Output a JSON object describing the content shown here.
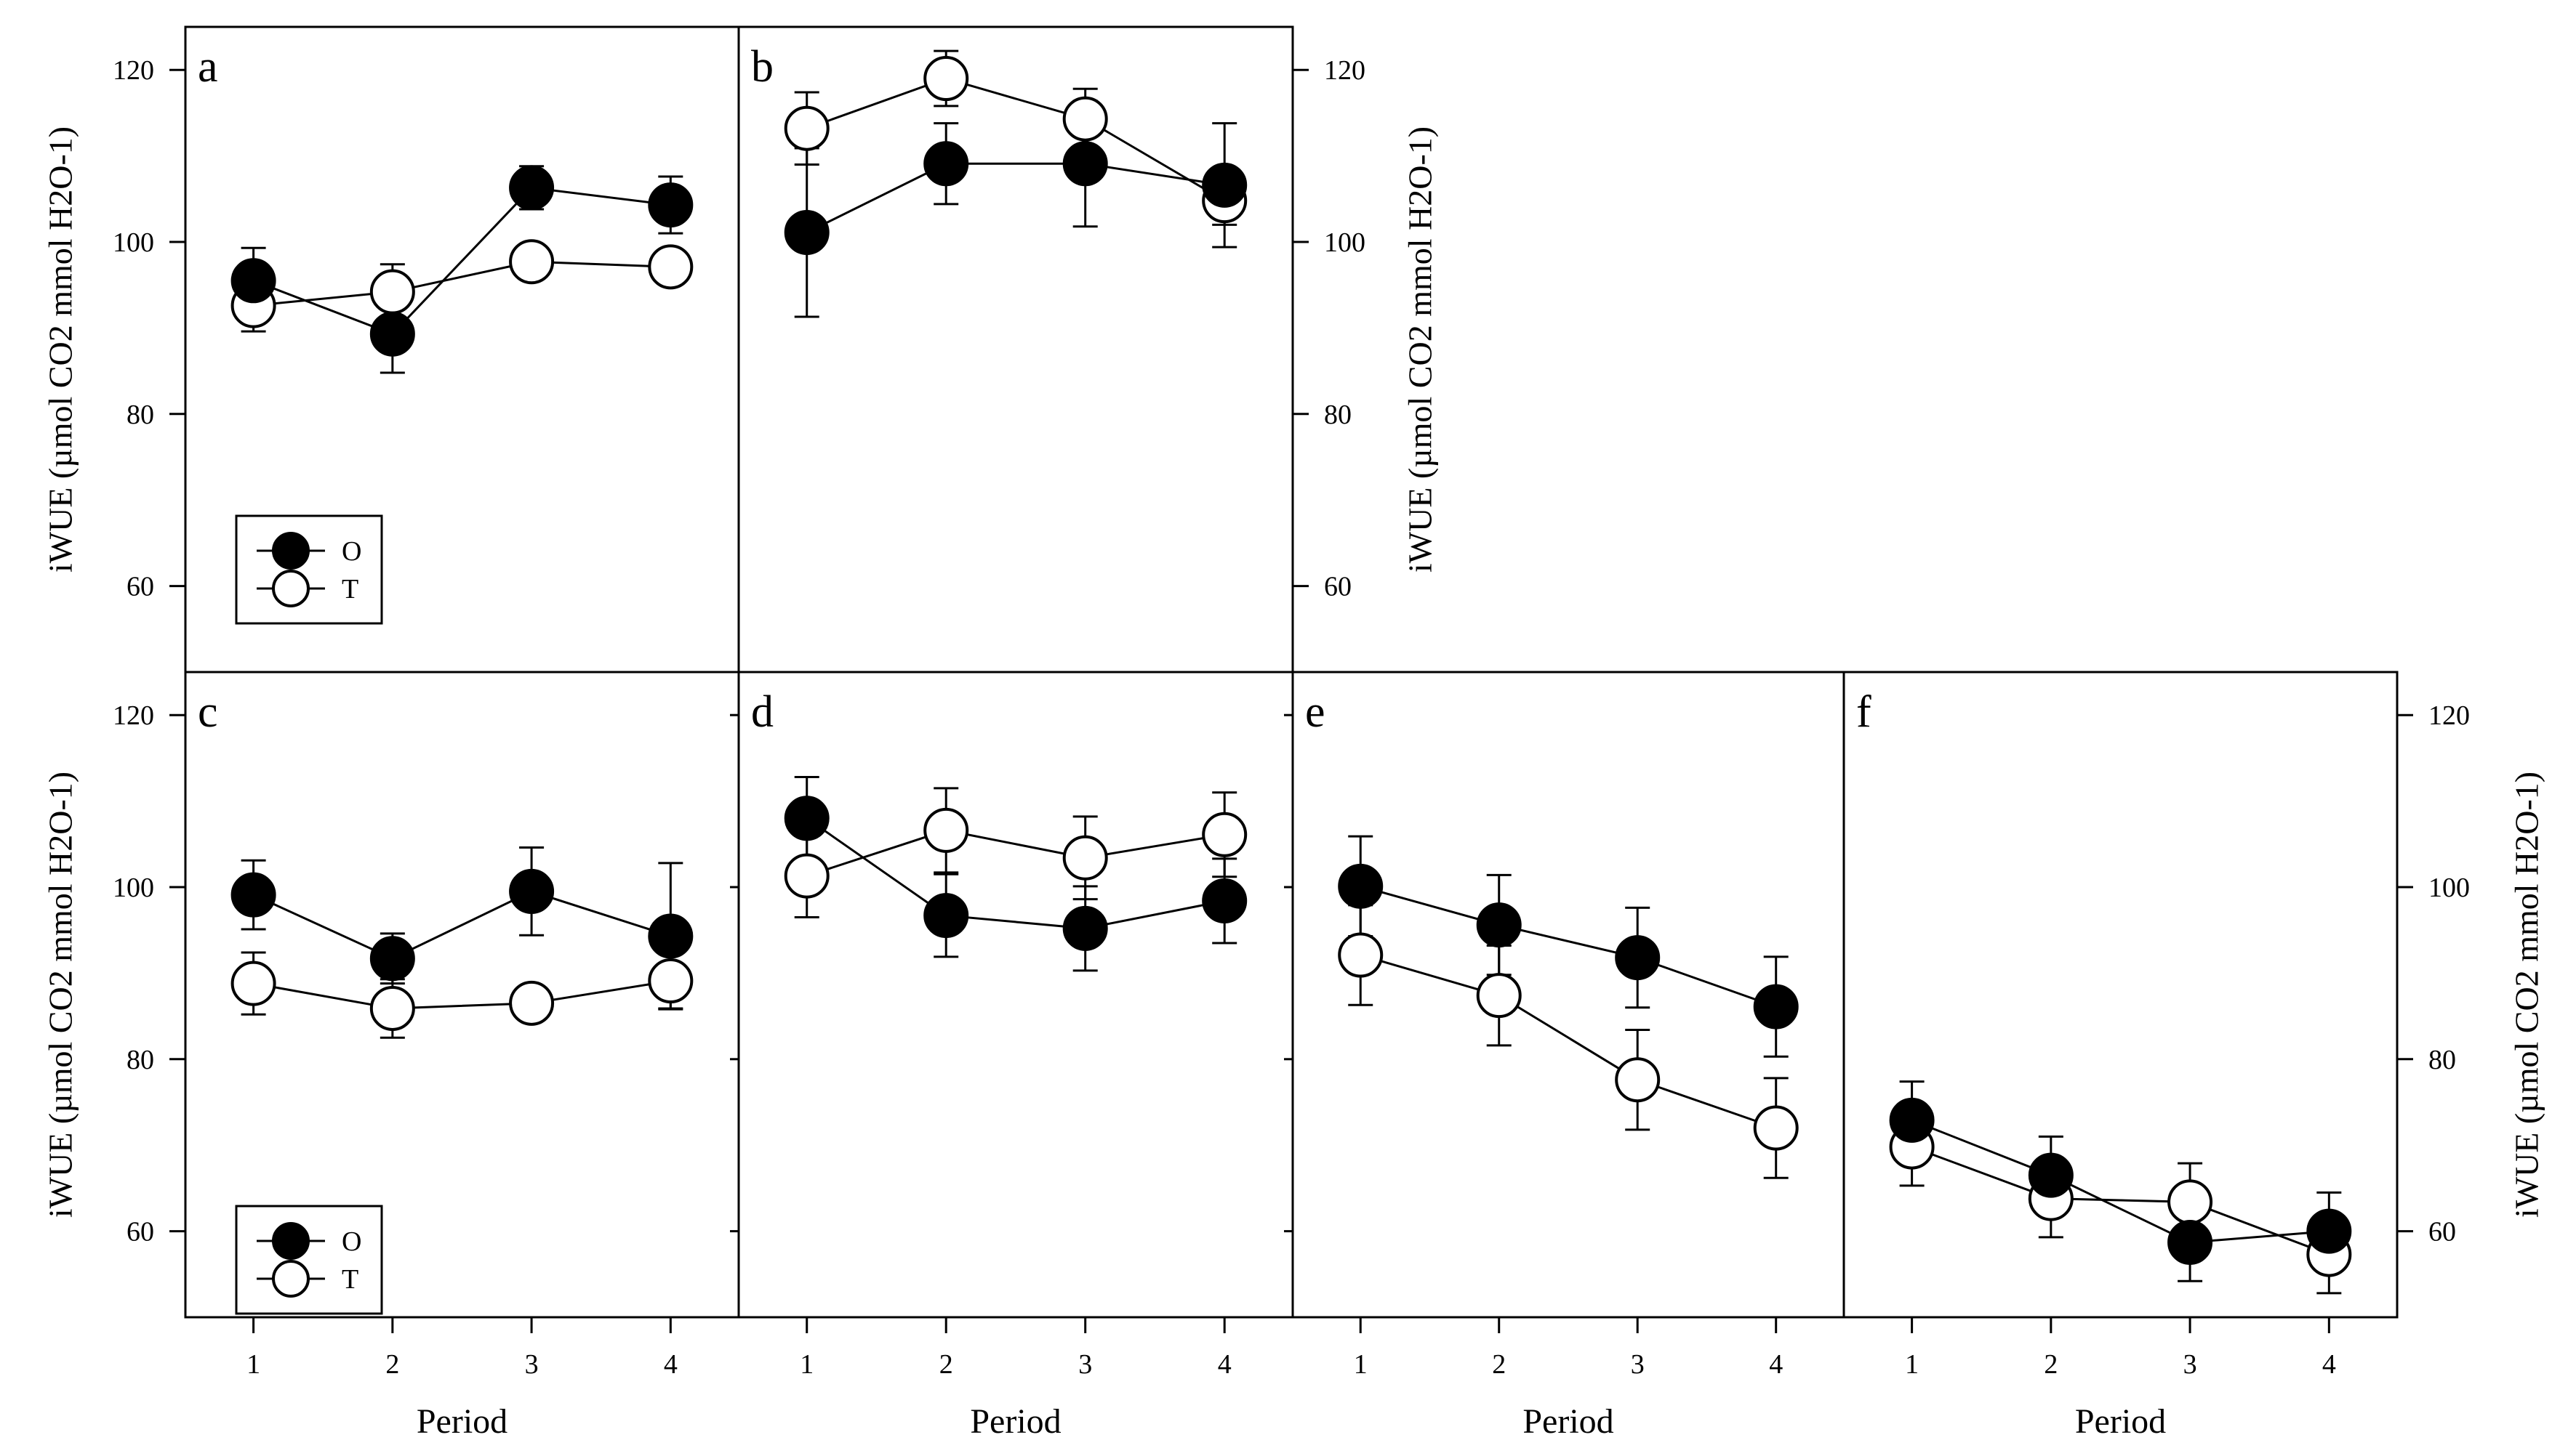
{
  "figure": {
    "y_axis_label": "iWUE (µmol CO2 mmol H2O-1)",
    "x_axis_label": "Period",
    "legend": [
      {
        "label": "O",
        "marker": "filled-circle"
      },
      {
        "label": "T",
        "marker": "open-circle"
      }
    ]
  },
  "chart_data": [
    {
      "panel": "a",
      "type": "line",
      "x": [
        1,
        2,
        3,
        4
      ],
      "ylim": [
        50,
        125
      ],
      "yticks": [
        60,
        80,
        100,
        120
      ],
      "xticks": [
        1,
        2,
        3,
        4
      ],
      "series": [
        {
          "name": "O",
          "values": [
            95.5,
            89.3,
            106.3,
            104.3
          ],
          "errors": [
            3.8,
            4.5,
            2.5,
            3.3
          ]
        },
        {
          "name": "T",
          "values": [
            92.6,
            94.2,
            97.7,
            97.1
          ],
          "errors": [
            3.0,
            3.2,
            1.5,
            1.8
          ]
        }
      ]
    },
    {
      "panel": "b",
      "type": "line",
      "x": [
        1,
        2,
        3,
        4
      ],
      "ylim": [
        50,
        125
      ],
      "yticks": [
        60,
        80,
        100,
        120
      ],
      "xticks": [
        1,
        2,
        3,
        4
      ],
      "series": [
        {
          "name": "O",
          "values": [
            101.1,
            109.1,
            109.1,
            106.6
          ],
          "errors": [
            9.8,
            4.7,
            7.3,
            7.2
          ]
        },
        {
          "name": "T",
          "values": [
            113.2,
            119.0,
            114.3,
            104.8
          ],
          "errors": [
            4.2,
            3.2,
            3.5,
            2.8
          ]
        }
      ]
    },
    {
      "panel": "c",
      "type": "line",
      "x": [
        1,
        2,
        3,
        4
      ],
      "ylim": [
        50,
        125
      ],
      "yticks": [
        60,
        80,
        100,
        120
      ],
      "xticks": [
        1,
        2,
        3,
        4
      ],
      "series": [
        {
          "name": "O",
          "values": [
            99.1,
            91.7,
            99.5,
            94.3
          ],
          "errors": [
            4.0,
            2.9,
            5.1,
            8.5
          ]
        },
        {
          "name": "T",
          "values": [
            88.8,
            85.9,
            86.5,
            89.1
          ],
          "errors": [
            3.6,
            3.4,
            0.8,
            3.2
          ]
        }
      ]
    },
    {
      "panel": "d",
      "type": "line",
      "x": [
        1,
        2,
        3,
        4
      ],
      "ylim": [
        50,
        125
      ],
      "yticks": [
        60,
        80,
        100,
        120
      ],
      "xticks": [
        1,
        2,
        3,
        4
      ],
      "series": [
        {
          "name": "O",
          "values": [
            108.0,
            96.7,
            95.2,
            98.4
          ],
          "errors": [
            4.8,
            4.8,
            4.9,
            4.9
          ]
        },
        {
          "name": "T",
          "values": [
            101.3,
            106.6,
            103.4,
            106.1
          ],
          "errors": [
            4.8,
            4.9,
            4.8,
            4.9
          ]
        }
      ]
    },
    {
      "panel": "e",
      "type": "line",
      "x": [
        1,
        2,
        3,
        4
      ],
      "ylim": [
        50,
        125
      ],
      "yticks": [
        60,
        80,
        100,
        120
      ],
      "xticks": [
        1,
        2,
        3,
        4
      ],
      "series": [
        {
          "name": "O",
          "values": [
            100.1,
            95.6,
            91.8,
            86.1
          ],
          "errors": [
            5.8,
            5.8,
            5.8,
            5.8
          ]
        },
        {
          "name": "T",
          "values": [
            92.1,
            87.4,
            77.6,
            72.0
          ],
          "errors": [
            5.8,
            5.8,
            5.8,
            5.8
          ]
        }
      ]
    },
    {
      "panel": "f",
      "type": "line",
      "x": [
        1,
        2,
        3,
        4
      ],
      "ylim": [
        50,
        125
      ],
      "yticks": [
        60,
        80,
        100,
        120
      ],
      "xticks": [
        1,
        2,
        3,
        4
      ],
      "series": [
        {
          "name": "O",
          "values": [
            72.9,
            66.5,
            58.7,
            60.0
          ],
          "errors": [
            4.5,
            4.5,
            4.5,
            4.5
          ]
        },
        {
          "name": "T",
          "values": [
            69.8,
            63.8,
            63.4,
            57.3
          ],
          "errors": [
            4.5,
            4.5,
            4.5,
            4.5
          ]
        }
      ]
    }
  ]
}
